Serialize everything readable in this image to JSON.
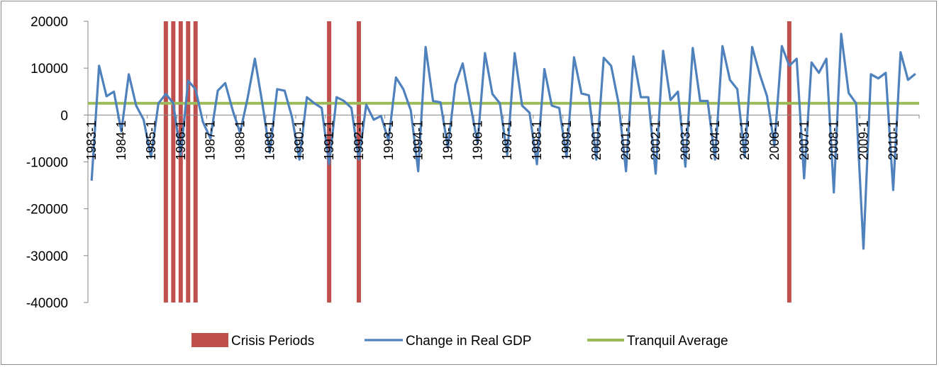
{
  "chart_data": {
    "type": "line",
    "title": "",
    "xlabel": "",
    "ylabel": "",
    "ylim": [
      -40000,
      20000
    ],
    "yticks": [
      20000,
      10000,
      0,
      -10000,
      -20000,
      -30000,
      -40000
    ],
    "ytick_labels": [
      "20000",
      "10000",
      "0",
      "-10000",
      "-20000",
      "-30000",
      "-40000"
    ],
    "x_tick_labels": [
      "1983-1",
      "1984-1",
      "1985-1",
      "1986-1",
      "1987-1",
      "1988-1",
      "1989-1",
      "1990-1",
      "1991-1",
      "1992-1",
      "1993-1",
      "1994-1",
      "1995-1",
      "1996-1",
      "1997-1",
      "1998-1",
      "1999-1",
      "2000-1",
      "2001-1",
      "2002-1",
      "2003-1",
      "2004-1",
      "2005-1",
      "2006-1",
      "2007-1",
      "2008-1",
      "2009-1",
      "2010-1"
    ],
    "quarters": 112,
    "legend": {
      "placement": "bottom",
      "entries": [
        "Crisis Periods",
        "Change in Real GDP",
        "Tranquil Average"
      ]
    },
    "colors": {
      "crisis": "#c0504d",
      "gdp": "#4f81bd",
      "average": "#9bbb59"
    },
    "series": [
      {
        "name": "Change in Real GDP",
        "values": [
          -14000,
          10500,
          4000,
          5000,
          -3500,
          8700,
          2000,
          -1000,
          -9000,
          2500,
          4500,
          2500,
          -8500,
          7300,
          5500,
          -1500,
          -5000,
          5200,
          6800,
          1000,
          -3800,
          3500,
          12000,
          2500,
          -8000,
          5500,
          5200,
          -500,
          -9500,
          3800,
          2500,
          1500,
          -10500,
          3800,
          3000,
          1500,
          -9500,
          2200,
          -1000,
          -200,
          -5500,
          8000,
          5500,
          1000,
          -12000,
          14500,
          3000,
          2700,
          -7000,
          6500,
          11000,
          2500,
          -6000,
          13200,
          4500,
          2500,
          -8500,
          13200,
          2000,
          500,
          -10500,
          9800,
          2000,
          1500,
          -9000,
          12300,
          4600,
          4200,
          -9500,
          12200,
          10500,
          2500,
          -12000,
          12500,
          3800,
          3800,
          -12500,
          13700,
          3200,
          5000,
          -11000,
          14300,
          3000,
          3000,
          -9500,
          14700,
          7500,
          5500,
          -9000,
          14500,
          8800,
          4000,
          -6500,
          14700,
          10500,
          12000,
          -13500,
          11200,
          9000,
          12000,
          -16500,
          17300,
          4700,
          2500,
          -28500,
          8700,
          7800,
          9000,
          -16000,
          13400,
          7500,
          8800
        ]
      },
      {
        "name": "Tranquil Average",
        "value": 2500
      },
      {
        "name": "Crisis Periods",
        "quarter_indices": [
          10,
          11,
          12,
          13,
          14,
          32,
          36,
          94
        ]
      }
    ]
  }
}
